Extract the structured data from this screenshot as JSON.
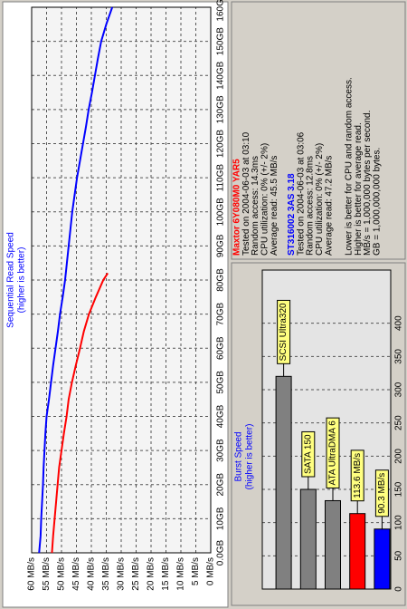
{
  "chart_data": [
    {
      "type": "line",
      "title": "Sequential Read Speed",
      "subtitle": "(higher is better)",
      "series": [
        {
          "name": "Maxtor 6Y080M0 YAR5",
          "color": "#ff0000",
          "x": [
            0,
            5,
            10,
            15,
            20,
            25,
            30,
            35,
            40,
            45,
            50,
            55,
            60,
            65,
            70,
            75,
            80,
            82
          ],
          "values": [
            53.2,
            52.8,
            52.3,
            51.8,
            51.3,
            50.8,
            50,
            49.2,
            48.3,
            47.6,
            46.5,
            45.2,
            43.8,
            42.5,
            40.8,
            38.5,
            36,
            34.5
          ]
        },
        {
          "name": "ST316002 3AS 3.18",
          "color": "#0000ff",
          "x": [
            0,
            5,
            10,
            15,
            20,
            25,
            30,
            35,
            40,
            45,
            50,
            55,
            60,
            65,
            70,
            75,
            80,
            85,
            90,
            95,
            100,
            105,
            110,
            115,
            120,
            125,
            130,
            135,
            140,
            145,
            150,
            155,
            160
          ],
          "values": [
            57.5,
            57,
            56.8,
            56.5,
            56.2,
            56,
            55.7,
            55.4,
            55,
            54.2,
            53.5,
            52.8,
            52,
            51.2,
            50.5,
            49.6,
            48.8,
            48.2,
            47.6,
            47,
            46.4,
            45.6,
            44.8,
            43.8,
            42.8,
            41.8,
            40.9,
            39.8,
            38.8,
            37.8,
            36.7,
            35,
            33
          ]
        }
      ],
      "xlim": [
        0,
        160
      ],
      "xticks": [
        {
          "value": 0,
          "label": "0.0GB"
        },
        {
          "value": 10,
          "label": "10GB"
        },
        {
          "value": 20,
          "label": "20GB"
        },
        {
          "value": 30,
          "label": "30GB"
        },
        {
          "value": 40,
          "label": "40GB"
        },
        {
          "value": 50,
          "label": "50GB"
        },
        {
          "value": 60,
          "label": "60GB"
        },
        {
          "value": 70,
          "label": "70GB"
        },
        {
          "value": 80,
          "label": "80GB"
        },
        {
          "value": 90,
          "label": "90GB"
        },
        {
          "value": 100,
          "label": "100GB"
        },
        {
          "value": 110,
          "label": "110GB"
        },
        {
          "value": 120,
          "label": "120GB"
        },
        {
          "value": 130,
          "label": "130GB"
        },
        {
          "value": 140,
          "label": "140GB"
        },
        {
          "value": 150,
          "label": "150GB"
        },
        {
          "value": 160,
          "label": "160GB"
        }
      ],
      "ylim": [
        0,
        60
      ],
      "yticks": [
        {
          "value": 0,
          "label": "0 MB/s"
        },
        {
          "value": 5,
          "label": "5 MB/s"
        },
        {
          "value": 10,
          "label": "10 MB/s"
        },
        {
          "value": 15,
          "label": "15 MB/s"
        },
        {
          "value": 20,
          "label": "20 MB/s"
        },
        {
          "value": 25,
          "label": "25 MB/s"
        },
        {
          "value": 30,
          "label": "30 MB/s"
        },
        {
          "value": 35,
          "label": "35 MB/s"
        },
        {
          "value": 40,
          "label": "40 MB/s"
        },
        {
          "value": 45,
          "label": "45 MB/s"
        },
        {
          "value": 50,
          "label": "50 MB/s"
        },
        {
          "value": 55,
          "label": "55 MB/s"
        },
        {
          "value": 60,
          "label": "60 MB/s"
        }
      ],
      "grid": true
    },
    {
      "type": "bar",
      "title": "Burst Speed",
      "subtitle": "(higher is better)",
      "categories": [
        "SCSI Ultra320",
        "SATA 150",
        "ATA UltraDMA 6",
        null,
        null
      ],
      "values": [
        320,
        150,
        133,
        113.6,
        90.3
      ],
      "value_labels": [
        null,
        null,
        null,
        "113.6 MB/s",
        "90.3 MB/s"
      ],
      "colors": [
        "#808080",
        "#808080",
        "#808080",
        "#ff0000",
        "#0000ff"
      ],
      "ylim": [
        0,
        480
      ],
      "yticks": [
        0,
        50,
        100,
        150,
        200,
        250,
        300,
        350,
        400
      ],
      "grid": true
    }
  ],
  "info": {
    "drive_details": [
      [
        "Tested on 2004-06-03 at 03:10",
        "Random access: 14.3ms",
        "CPU utilization: 0% (+/- 2%)",
        "Average read: 45.5 MB/s"
      ],
      [
        "Tested on 2004-06-03 at 03:06",
        "Random access: 12.8ms",
        "CPU utilization: 0% (+/- 2%)",
        "Average read: 47.2 MB/s"
      ]
    ],
    "notes": [
      "Lower is better for CPU and random access.",
      "Higher is better for average read.",
      "MB/s = 1,000,000 bytes per second.",
      "GB = 1,000,000,000 bytes."
    ]
  }
}
